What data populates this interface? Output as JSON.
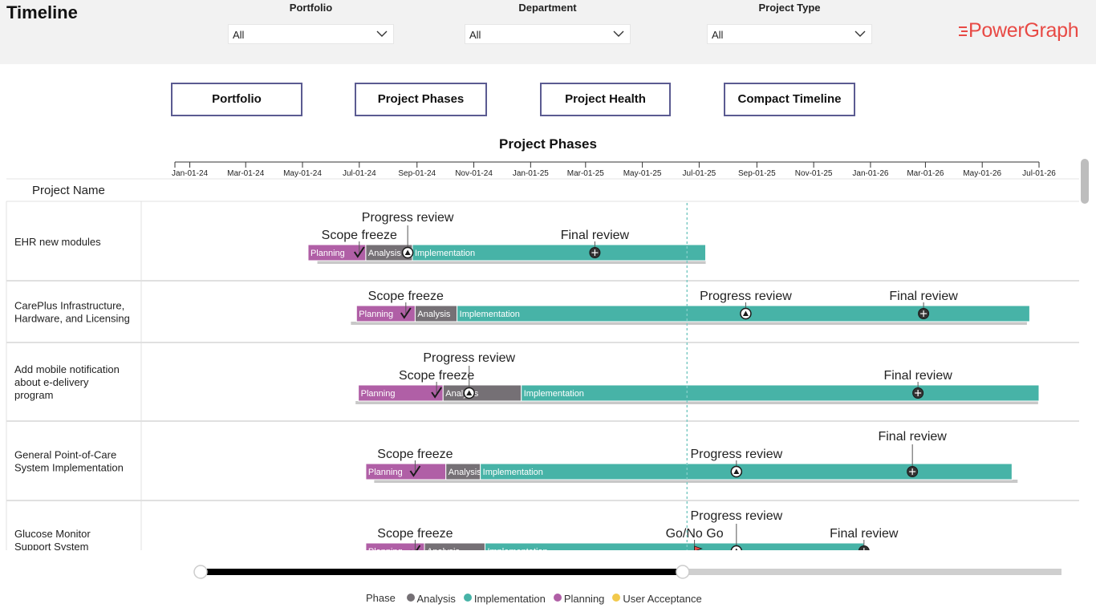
{
  "header": {
    "title": "Timeline",
    "logo_text": "PowerGraph",
    "filters": [
      {
        "label": "Portfolio",
        "value": "All"
      },
      {
        "label": "Department",
        "value": "All"
      },
      {
        "label": "Project Type",
        "value": "All"
      }
    ]
  },
  "nav": [
    "Portfolio",
    "Project Phases",
    "Project Health",
    "Compact Timeline"
  ],
  "chart_title": "Project Phases",
  "column_header": "Project Name",
  "axis": {
    "ticks": [
      "Jan-01-24",
      "Mar-01-24",
      "May-01-24",
      "Jul-01-24",
      "Sep-01-24",
      "Nov-01-24",
      "Jan-01-25",
      "Mar-01-25",
      "May-01-25",
      "Jul-01-25",
      "Sep-01-25",
      "Nov-01-25",
      "Jan-01-26",
      "Mar-01-26",
      "May-01-26",
      "Jul-01-26"
    ]
  },
  "today": "2025-06-18",
  "colors": {
    "Planning": "#b05fa6",
    "Analysis": "#757075",
    "Implementation": "#47b3a7",
    "User Acceptance": "#f2c94c",
    "baseline": "#c8c8c8",
    "today_line": "#7ecbc5"
  },
  "legend": {
    "title": "Phase",
    "items": [
      {
        "name": "Analysis",
        "color": "#757075"
      },
      {
        "name": "Implementation",
        "color": "#47b3a7"
      },
      {
        "name": "Planning",
        "color": "#b05fa6"
      },
      {
        "name": "User Acceptance",
        "color": "#f2c94c"
      }
    ]
  },
  "slider": {
    "start": 0,
    "end": 0.56
  },
  "chart_data": {
    "type": "gantt",
    "title": "Project Phases",
    "x_range": [
      "2023-12-16",
      "2026-07-01"
    ],
    "projects": [
      {
        "name": [
          "EHR new modules"
        ],
        "phases": [
          {
            "phase": "Planning",
            "start": "2024-05-07",
            "end": "2024-07-08"
          },
          {
            "phase": "Analysis",
            "start": "2024-07-08",
            "end": "2024-08-27"
          },
          {
            "phase": "Implementation",
            "start": "2024-08-27",
            "end": "2025-07-08"
          }
        ],
        "baseline": {
          "start": "2024-05-17",
          "end": "2025-07-08"
        },
        "milestones": [
          {
            "name": "Scope freeze",
            "date": "2024-07-01",
            "icon": "check",
            "level": 1
          },
          {
            "name": "Progress review",
            "date": "2024-08-22",
            "icon": "triangle",
            "level": 2
          },
          {
            "name": "Final review",
            "date": "2025-03-11",
            "icon": "face",
            "level": 1
          }
        ]
      },
      {
        "name": [
          "CarePlus Infrastructure,",
          "Hardware, and Licensing"
        ],
        "phases": [
          {
            "phase": "Planning",
            "start": "2024-06-28",
            "end": "2024-08-30"
          },
          {
            "phase": "Analysis",
            "start": "2024-08-30",
            "end": "2024-10-14"
          },
          {
            "phase": "Implementation",
            "start": "2024-10-14",
            "end": "2026-06-21"
          }
        ],
        "baseline": {
          "start": "2024-06-22",
          "end": "2026-06-18"
        },
        "milestones": [
          {
            "name": "Scope freeze",
            "date": "2024-08-20",
            "icon": "check",
            "level": 1
          },
          {
            "name": "Progress review",
            "date": "2025-08-20",
            "icon": "triangle",
            "level": 1
          },
          {
            "name": "Final review",
            "date": "2026-02-27",
            "icon": "face",
            "level": 1
          }
        ]
      },
      {
        "name": [
          "Add mobile notification",
          "about e-delivery",
          "program"
        ],
        "phases": [
          {
            "phase": "Planning",
            "start": "2024-06-30",
            "end": "2024-09-29"
          },
          {
            "phase": "Analysis",
            "start": "2024-09-29",
            "end": "2024-12-22"
          },
          {
            "phase": "Implementation",
            "start": "2024-12-22",
            "end": "2026-07-01"
          }
        ],
        "baseline": {
          "start": "2024-06-27",
          "end": "2026-06-30"
        },
        "milestones": [
          {
            "name": "Scope freeze",
            "date": "2024-09-22",
            "icon": "check",
            "level": 1
          },
          {
            "name": "Progress review",
            "date": "2024-10-27",
            "icon": "triangle",
            "level": 2
          },
          {
            "name": "Final review",
            "date": "2026-02-21",
            "icon": "face",
            "level": 1
          }
        ]
      },
      {
        "name": [
          "General Point-of-Care",
          "System Implementation"
        ],
        "phases": [
          {
            "phase": "Planning",
            "start": "2024-07-08",
            "end": "2024-10-02"
          },
          {
            "phase": "Analysis",
            "start": "2024-10-02",
            "end": "2024-11-08"
          },
          {
            "phase": "Implementation",
            "start": "2024-11-08",
            "end": "2026-06-02"
          }
        ],
        "baseline": {
          "start": "2024-07-17",
          "end": "2026-06-08"
        },
        "milestones": [
          {
            "name": "Scope freeze",
            "date": "2024-08-30",
            "icon": "check",
            "level": 1
          },
          {
            "name": "Progress review",
            "date": "2025-08-10",
            "icon": "triangle",
            "level": 1
          },
          {
            "name": "Final review",
            "date": "2026-02-15",
            "icon": "face",
            "level": 2
          }
        ]
      },
      {
        "name": [
          "Glucose Monitor",
          "Support System"
        ],
        "phases": [
          {
            "phase": "Planning",
            "start": "2024-07-08",
            "end": "2024-09-09"
          },
          {
            "phase": "Analysis",
            "start": "2024-09-09",
            "end": "2024-11-13"
          },
          {
            "phase": "Implementation",
            "start": "2024-11-13",
            "end": "2025-12-25"
          }
        ],
        "baseline": {
          "start": "2024-07-08",
          "end": "2025-12-25"
        },
        "milestones": [
          {
            "name": "Scope freeze",
            "date": "2024-08-30",
            "icon": "check",
            "level": 1
          },
          {
            "name": "Go/No Go",
            "date": "2025-06-26",
            "icon": "flag",
            "level": 1
          },
          {
            "name": "Progress review",
            "date": "2025-08-10",
            "icon": "triangle",
            "level": 2
          },
          {
            "name": "Final review",
            "date": "2025-12-25",
            "icon": "face",
            "level": 1
          }
        ]
      }
    ]
  }
}
